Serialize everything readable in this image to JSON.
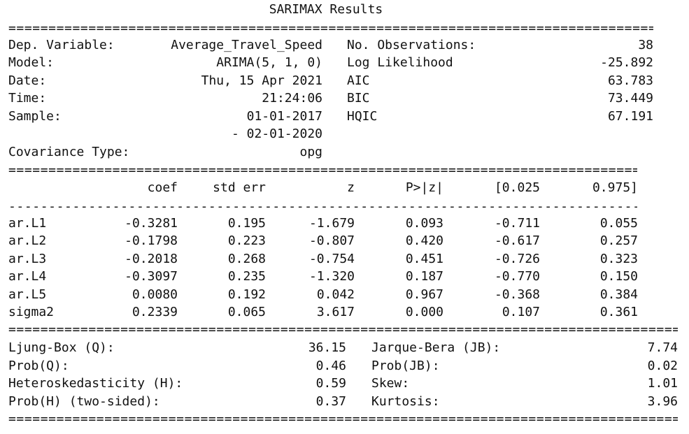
{
  "title": "SARIMAX Results",
  "rules": {
    "double": "================================================================================================================",
    "dash": "-----------------------------------------------------------------------------------------------------------------"
  },
  "summary": {
    "left": [
      {
        "label": "Dep. Variable:",
        "value": "Average_Travel_Speed"
      },
      {
        "label": "Model:",
        "value": "ARIMA(5, 1, 0)"
      },
      {
        "label": "Date:",
        "value": "Thu, 15 Apr 2021"
      },
      {
        "label": "Time:",
        "value": "21:24:06"
      },
      {
        "label": "Sample:",
        "value": "01-01-2017"
      },
      {
        "label": "",
        "value": "- 02-01-2020"
      },
      {
        "label": "Covariance Type:",
        "value": "opg"
      }
    ],
    "right": [
      {
        "label": "No. Observations:",
        "value": "38"
      },
      {
        "label": "Log Likelihood",
        "value": "-25.892"
      },
      {
        "label": "AIC",
        "value": "63.783"
      },
      {
        "label": "BIC",
        "value": "73.449"
      },
      {
        "label": "HQIC",
        "value": "67.191"
      }
    ]
  },
  "coef_table": {
    "headers": [
      "coef",
      "std err",
      "z",
      "P>|z|",
      "[0.025",
      "0.975]"
    ],
    "rows": [
      {
        "name": "ar.L1",
        "values": [
          "-0.3281",
          "0.195",
          "-1.679",
          "0.093",
          "-0.711",
          "0.055"
        ]
      },
      {
        "name": "ar.L2",
        "values": [
          "-0.1798",
          "0.223",
          "-0.807",
          "0.420",
          "-0.617",
          "0.257"
        ]
      },
      {
        "name": "ar.L3",
        "values": [
          "-0.2018",
          "0.268",
          "-0.754",
          "0.451",
          "-0.726",
          "0.323"
        ]
      },
      {
        "name": "ar.L4",
        "values": [
          "-0.3097",
          "0.235",
          "-1.320",
          "0.187",
          "-0.770",
          "0.150"
        ]
      },
      {
        "name": "ar.L5",
        "values": [
          "0.0080",
          "0.192",
          "0.042",
          "0.967",
          "-0.368",
          "0.384"
        ]
      },
      {
        "name": "sigma2",
        "values": [
          "0.2339",
          "0.065",
          "3.617",
          "0.000",
          "0.107",
          "0.361"
        ]
      }
    ]
  },
  "diagnostics": {
    "left": [
      {
        "label": "Ljung-Box (Q):",
        "value": "36.15"
      },
      {
        "label": "Prob(Q):",
        "value": "0.46"
      },
      {
        "label": "Heteroskedasticity (H):",
        "value": "0.59"
      },
      {
        "label": "Prob(H) (two-sided):",
        "value": "0.37"
      }
    ],
    "right": [
      {
        "label": "Jarque-Bera (JB):",
        "value": "7.74"
      },
      {
        "label": "Prob(JB):",
        "value": "0.02"
      },
      {
        "label": "Skew:",
        "value": "1.01"
      },
      {
        "label": "Kurtosis:",
        "value": "3.96"
      }
    ]
  }
}
